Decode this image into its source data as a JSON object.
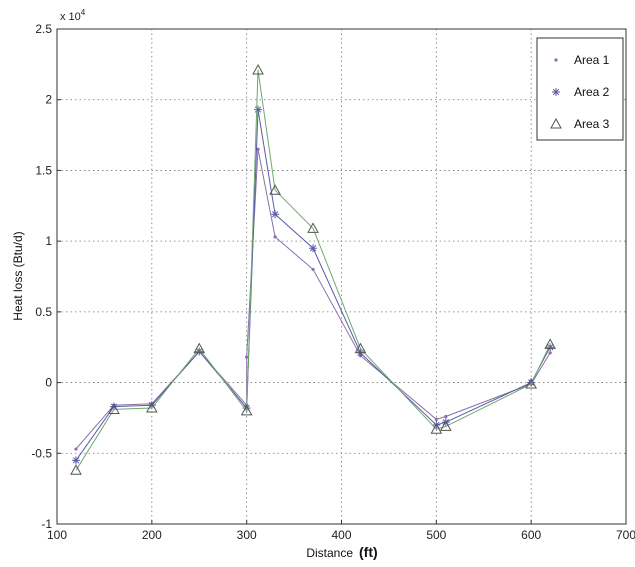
{
  "chart_data": {
    "type": "line",
    "title": "",
    "xlabel": "Distance",
    "xlabel_unit": "(ft)",
    "ylabel": "Heat loss (Btu/d)",
    "y_multiplier_label": "x 10",
    "y_multiplier_exp": "4",
    "xlim": [
      100,
      700
    ],
    "ylim": [
      -1,
      2.5
    ],
    "xticks": [
      "100",
      "200",
      "300",
      "400",
      "500",
      "600",
      "700"
    ],
    "yticks": [
      "-1",
      "-0.5",
      "0",
      "0.5",
      "1",
      "1.5",
      "2",
      "2.5"
    ],
    "grid": true,
    "legend_position": "top-right",
    "series": [
      {
        "name": "Area 1",
        "marker": "point",
        "color": "#8a6fa8",
        "x": [
          120,
          160,
          200,
          250,
          300,
          300,
          312,
          330,
          370,
          420,
          500,
          510,
          600,
          620
        ],
        "y": [
          -0.47,
          -0.16,
          -0.15,
          0.22,
          -0.16,
          0.18,
          1.65,
          1.03,
          0.8,
          0.19,
          -0.26,
          -0.24,
          -0.01,
          0.21
        ]
      },
      {
        "name": "Area 2",
        "marker": "asterisk",
        "color": "#5a5aa8",
        "x": [
          120,
          160,
          200,
          250,
          300,
          312,
          330,
          370,
          420,
          500,
          510,
          600,
          620
        ],
        "y": [
          -0.55,
          -0.17,
          -0.16,
          0.22,
          -0.18,
          1.93,
          1.19,
          0.95,
          0.21,
          -0.3,
          -0.28,
          0.0,
          0.25
        ]
      },
      {
        "name": "Area 3",
        "marker": "triangle",
        "color": "#6fa86f",
        "x": [
          120,
          160,
          200,
          250,
          300,
          312,
          330,
          370,
          420,
          500,
          510,
          600,
          620
        ],
        "y": [
          -0.62,
          -0.19,
          -0.18,
          0.24,
          -0.2,
          2.21,
          1.36,
          1.09,
          0.24,
          -0.33,
          -0.31,
          -0.01,
          0.27
        ]
      }
    ]
  }
}
